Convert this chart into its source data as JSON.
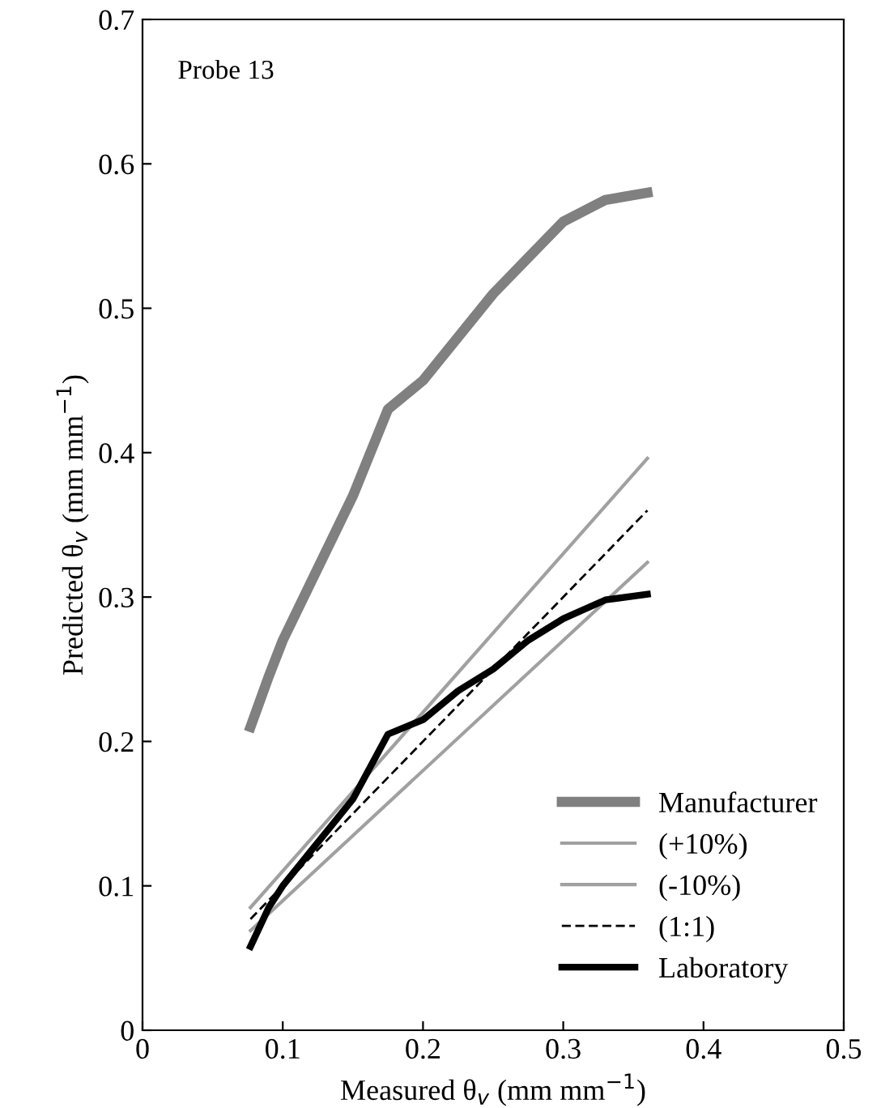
{
  "chart_data": {
    "type": "line",
    "xlabel": "Measured θ$_{v}$ (mm mm$^{−1}$)",
    "ylabel": "Predicted θ$_{v}$ (mm mm$^{−1}$)",
    "annotations": [
      "Probe 13"
    ],
    "xlim": [
      0,
      0.5
    ],
    "xticks": [
      0,
      0.1,
      0.2,
      0.3,
      0.4,
      0.5
    ],
    "ylim": [
      0,
      0.7
    ],
    "yticks": [
      0,
      0.1,
      0.2,
      0.3,
      0.4,
      0.5,
      0.6,
      0.7
    ],
    "grid": false,
    "legend": "bottom right",
    "marker": "none",
    "series": [
      {
        "name": "Manufacturer",
        "color": "#808080",
        "x": [
          0.077,
          0.09,
          0.1,
          0.12,
          0.15,
          0.175,
          0.2,
          0.225,
          0.25,
          0.275,
          0.3,
          0.33,
          0.36
        ],
        "values": [
          0.21,
          0.245,
          0.27,
          0.31,
          0.37,
          0.43,
          0.45,
          0.48,
          0.51,
          0.535,
          0.56,
          0.575,
          0.58
        ]
      },
      {
        "name": "(+10%)",
        "color": "#a0a0a0",
        "x": [
          0.077,
          0.36
        ],
        "values": [
          0.085,
          0.396
        ]
      },
      {
        "name": "(-10%)",
        "color": "#a0a0a0",
        "x": [
          0.077,
          0.36
        ],
        "values": [
          0.069,
          0.324
        ]
      },
      {
        "name": "(1:1)",
        "color": "#000000",
        "line_style": "dashed",
        "x": [
          0.077,
          0.36
        ],
        "values": [
          0.077,
          0.36
        ]
      },
      {
        "name": "Laboratory",
        "color": "#000000",
        "x": [
          0.077,
          0.09,
          0.1,
          0.125,
          0.15,
          0.175,
          0.2,
          0.225,
          0.25,
          0.275,
          0.3,
          0.33,
          0.36
        ],
        "values": [
          0.058,
          0.085,
          0.1,
          0.13,
          0.16,
          0.205,
          0.215,
          0.235,
          0.25,
          0.27,
          0.285,
          0.298,
          0.302
        ]
      }
    ]
  }
}
